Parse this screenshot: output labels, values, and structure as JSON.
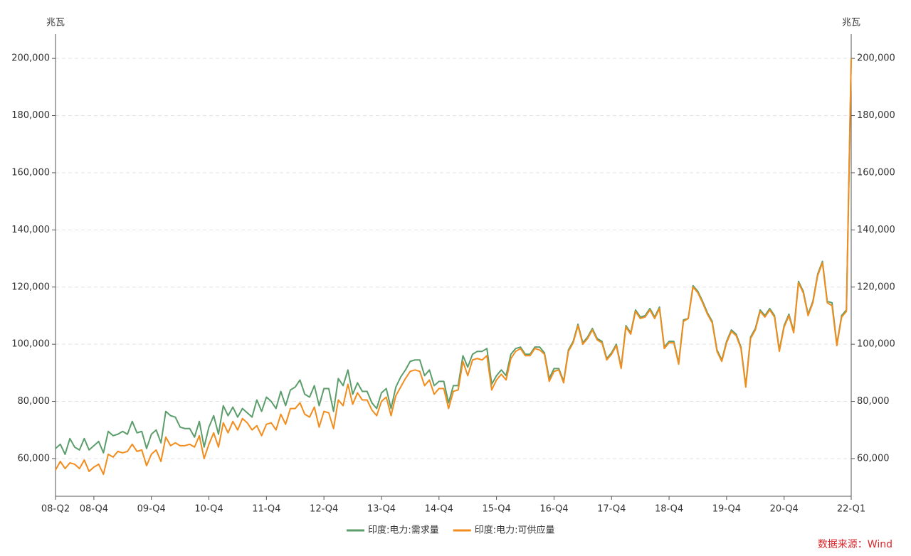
{
  "chart_data": {
    "type": "line",
    "y_unit": "兆瓦",
    "y2_unit": "兆瓦",
    "source": "数据来源：Wind",
    "categories": [
      "08-Q2",
      null,
      null,
      null,
      null,
      null,
      null,
      null,
      "08-Q4",
      null,
      null,
      null,
      null,
      null,
      null,
      null,
      null,
      null,
      null,
      null,
      "09-Q4",
      null,
      null,
      null,
      null,
      null,
      null,
      null,
      null,
      null,
      null,
      null,
      "10-Q4",
      null,
      null,
      null,
      null,
      null,
      null,
      null,
      null,
      null,
      null,
      null,
      "11-Q4",
      null,
      null,
      null,
      null,
      null,
      null,
      null,
      null,
      null,
      null,
      null,
      "12-Q4",
      null,
      null,
      null,
      null,
      null,
      null,
      null,
      null,
      null,
      null,
      null,
      "13-Q4",
      null,
      null,
      null,
      null,
      null,
      null,
      null,
      null,
      null,
      null,
      null,
      "14-Q4",
      null,
      null,
      null,
      null,
      null,
      null,
      null,
      null,
      null,
      null,
      null,
      "15-Q4",
      null,
      null,
      null,
      null,
      null,
      null,
      null,
      null,
      null,
      null,
      null,
      "16-Q4",
      null,
      null,
      null,
      null,
      null,
      null,
      null,
      null,
      null,
      null,
      null,
      "17-Q4",
      null,
      null,
      null,
      null,
      null,
      null,
      null,
      null,
      null,
      null,
      null,
      "18-Q4",
      null,
      null,
      null,
      null,
      null,
      null,
      null,
      null,
      null,
      null,
      null,
      "19-Q4",
      null,
      null,
      null,
      null,
      null,
      null,
      null,
      null,
      null,
      null,
      null,
      "20-Q4",
      null,
      null,
      null,
      null,
      null,
      null,
      null,
      null,
      null,
      null,
      null,
      null,
      null,
      "22-Q1"
    ],
    "series": [
      {
        "name": "印度:电力:需求量",
        "color": "#5b9e6b",
        "values": [
          63500,
          65000,
          61500,
          67000,
          64000,
          63000,
          67000,
          63000,
          64500,
          66000,
          62000,
          69500,
          68000,
          68500,
          69500,
          68500,
          73000,
          69000,
          69500,
          63500,
          68500,
          70000,
          65500,
          76500,
          75000,
          74500,
          71000,
          70500,
          70500,
          67500,
          73000,
          64000,
          71000,
          75000,
          68500,
          78500,
          75000,
          78000,
          74500,
          77500,
          76000,
          74500,
          80500,
          76500,
          81500,
          80000,
          77500,
          83500,
          78500,
          84000,
          85000,
          87500,
          82500,
          81500,
          85500,
          78500,
          84500,
          84500,
          76500,
          88000,
          85500,
          91000,
          82500,
          86500,
          83500,
          83500,
          79500,
          77500,
          83000,
          84500,
          77500,
          85000,
          88500,
          91000,
          94000,
          94500,
          94500,
          89000,
          91000,
          85500,
          87000,
          87000,
          79500,
          85500,
          85500,
          96000,
          92000,
          96500,
          97500,
          97500,
          98500,
          86000,
          89000,
          91000,
          89000,
          96500,
          98500,
          99000,
          96500,
          96500,
          99000,
          99000,
          97000,
          88000,
          91500,
          91500,
          87000,
          98000,
          101000,
          107000,
          100500,
          102500,
          105500,
          102000,
          101000,
          95000,
          97000,
          100000,
          92000,
          106500,
          104000,
          112000,
          109500,
          110000,
          112500,
          109500,
          113000,
          99000,
          101000,
          101000,
          93500,
          108500,
          109000,
          120500,
          118500,
          115000,
          111000,
          108000,
          98000,
          94500,
          101000,
          105000,
          103500,
          99000,
          85500,
          102500,
          105500,
          112000,
          110000,
          112500,
          110000,
          98000,
          106500,
          110500,
          104500,
          122000,
          118500,
          110500,
          115000,
          124500,
          129000,
          115000,
          114500,
          100000,
          110000,
          112000,
          200000
        ]
      },
      {
        "name": "印度:电力:可供应量",
        "color": "#f28c1c",
        "values": [
          56000,
          59000,
          56500,
          58500,
          58000,
          56500,
          59500,
          55500,
          57000,
          58000,
          54500,
          61500,
          60500,
          62500,
          62000,
          62500,
          65000,
          62500,
          63000,
          57500,
          61500,
          63000,
          59000,
          67500,
          64500,
          65500,
          64500,
          64500,
          65000,
          64000,
          68000,
          60000,
          65000,
          69000,
          64000,
          72500,
          69000,
          73000,
          70000,
          74000,
          72500,
          70000,
          71500,
          68000,
          72000,
          72500,
          70000,
          75500,
          72000,
          77500,
          77500,
          79500,
          75500,
          74500,
          78000,
          71000,
          76500,
          76000,
          70500,
          80500,
          78500,
          86000,
          79000,
          83000,
          80500,
          80500,
          77000,
          75000,
          80000,
          81500,
          75000,
          82000,
          85000,
          88000,
          90500,
          91000,
          90500,
          85500,
          87500,
          82500,
          84500,
          84500,
          77500,
          83500,
          84000,
          94000,
          89000,
          94500,
          95000,
          94500,
          96000,
          84000,
          87500,
          89500,
          87500,
          95000,
          97500,
          98500,
          96000,
          96000,
          98500,
          98000,
          96500,
          87000,
          90500,
          91000,
          86500,
          97500,
          100500,
          106500,
          100000,
          102000,
          105000,
          101500,
          100500,
          94500,
          96500,
          99500,
          91500,
          106000,
          103500,
          111500,
          109000,
          109500,
          112000,
          109000,
          112500,
          98500,
          100500,
          100500,
          93000,
          108000,
          109000,
          120000,
          118000,
          114500,
          110500,
          107500,
          97500,
          94000,
          100500,
          104500,
          103000,
          98500,
          85000,
          102000,
          105000,
          111500,
          109500,
          112000,
          109500,
          97500,
          106000,
          110000,
          104000,
          121500,
          118000,
          110000,
          114500,
          124000,
          128500,
          114500,
          113500,
          99500,
          109500,
          111500,
          200000
        ]
      }
    ],
    "ylim": [
      46800,
      208500
    ],
    "yticks": [
      {
        "value": 60000,
        "label": "60,000"
      },
      {
        "value": 80000,
        "label": "80,000"
      },
      {
        "value": 100000,
        "label": "100,000"
      },
      {
        "value": 120000,
        "label": "120,000"
      },
      {
        "value": 140000,
        "label": "140,000"
      },
      {
        "value": 160000,
        "label": "160,000"
      },
      {
        "value": 180000,
        "label": "180,000"
      },
      {
        "value": 200000,
        "label": "200,000"
      }
    ],
    "y2lim": [
      46800,
      208500
    ],
    "y2ticks": [
      {
        "value": 60000,
        "label": "60,000"
      },
      {
        "value": 80000,
        "label": "80,000"
      },
      {
        "value": 100000,
        "label": "100,000"
      },
      {
        "value": 120000,
        "label": "120,000"
      },
      {
        "value": 140000,
        "label": "140,000"
      },
      {
        "value": 160000,
        "label": "160,000"
      },
      {
        "value": 180000,
        "label": "180,000"
      },
      {
        "value": 200000,
        "label": "200,000"
      }
    ],
    "grid": true,
    "legend": "bottom"
  }
}
